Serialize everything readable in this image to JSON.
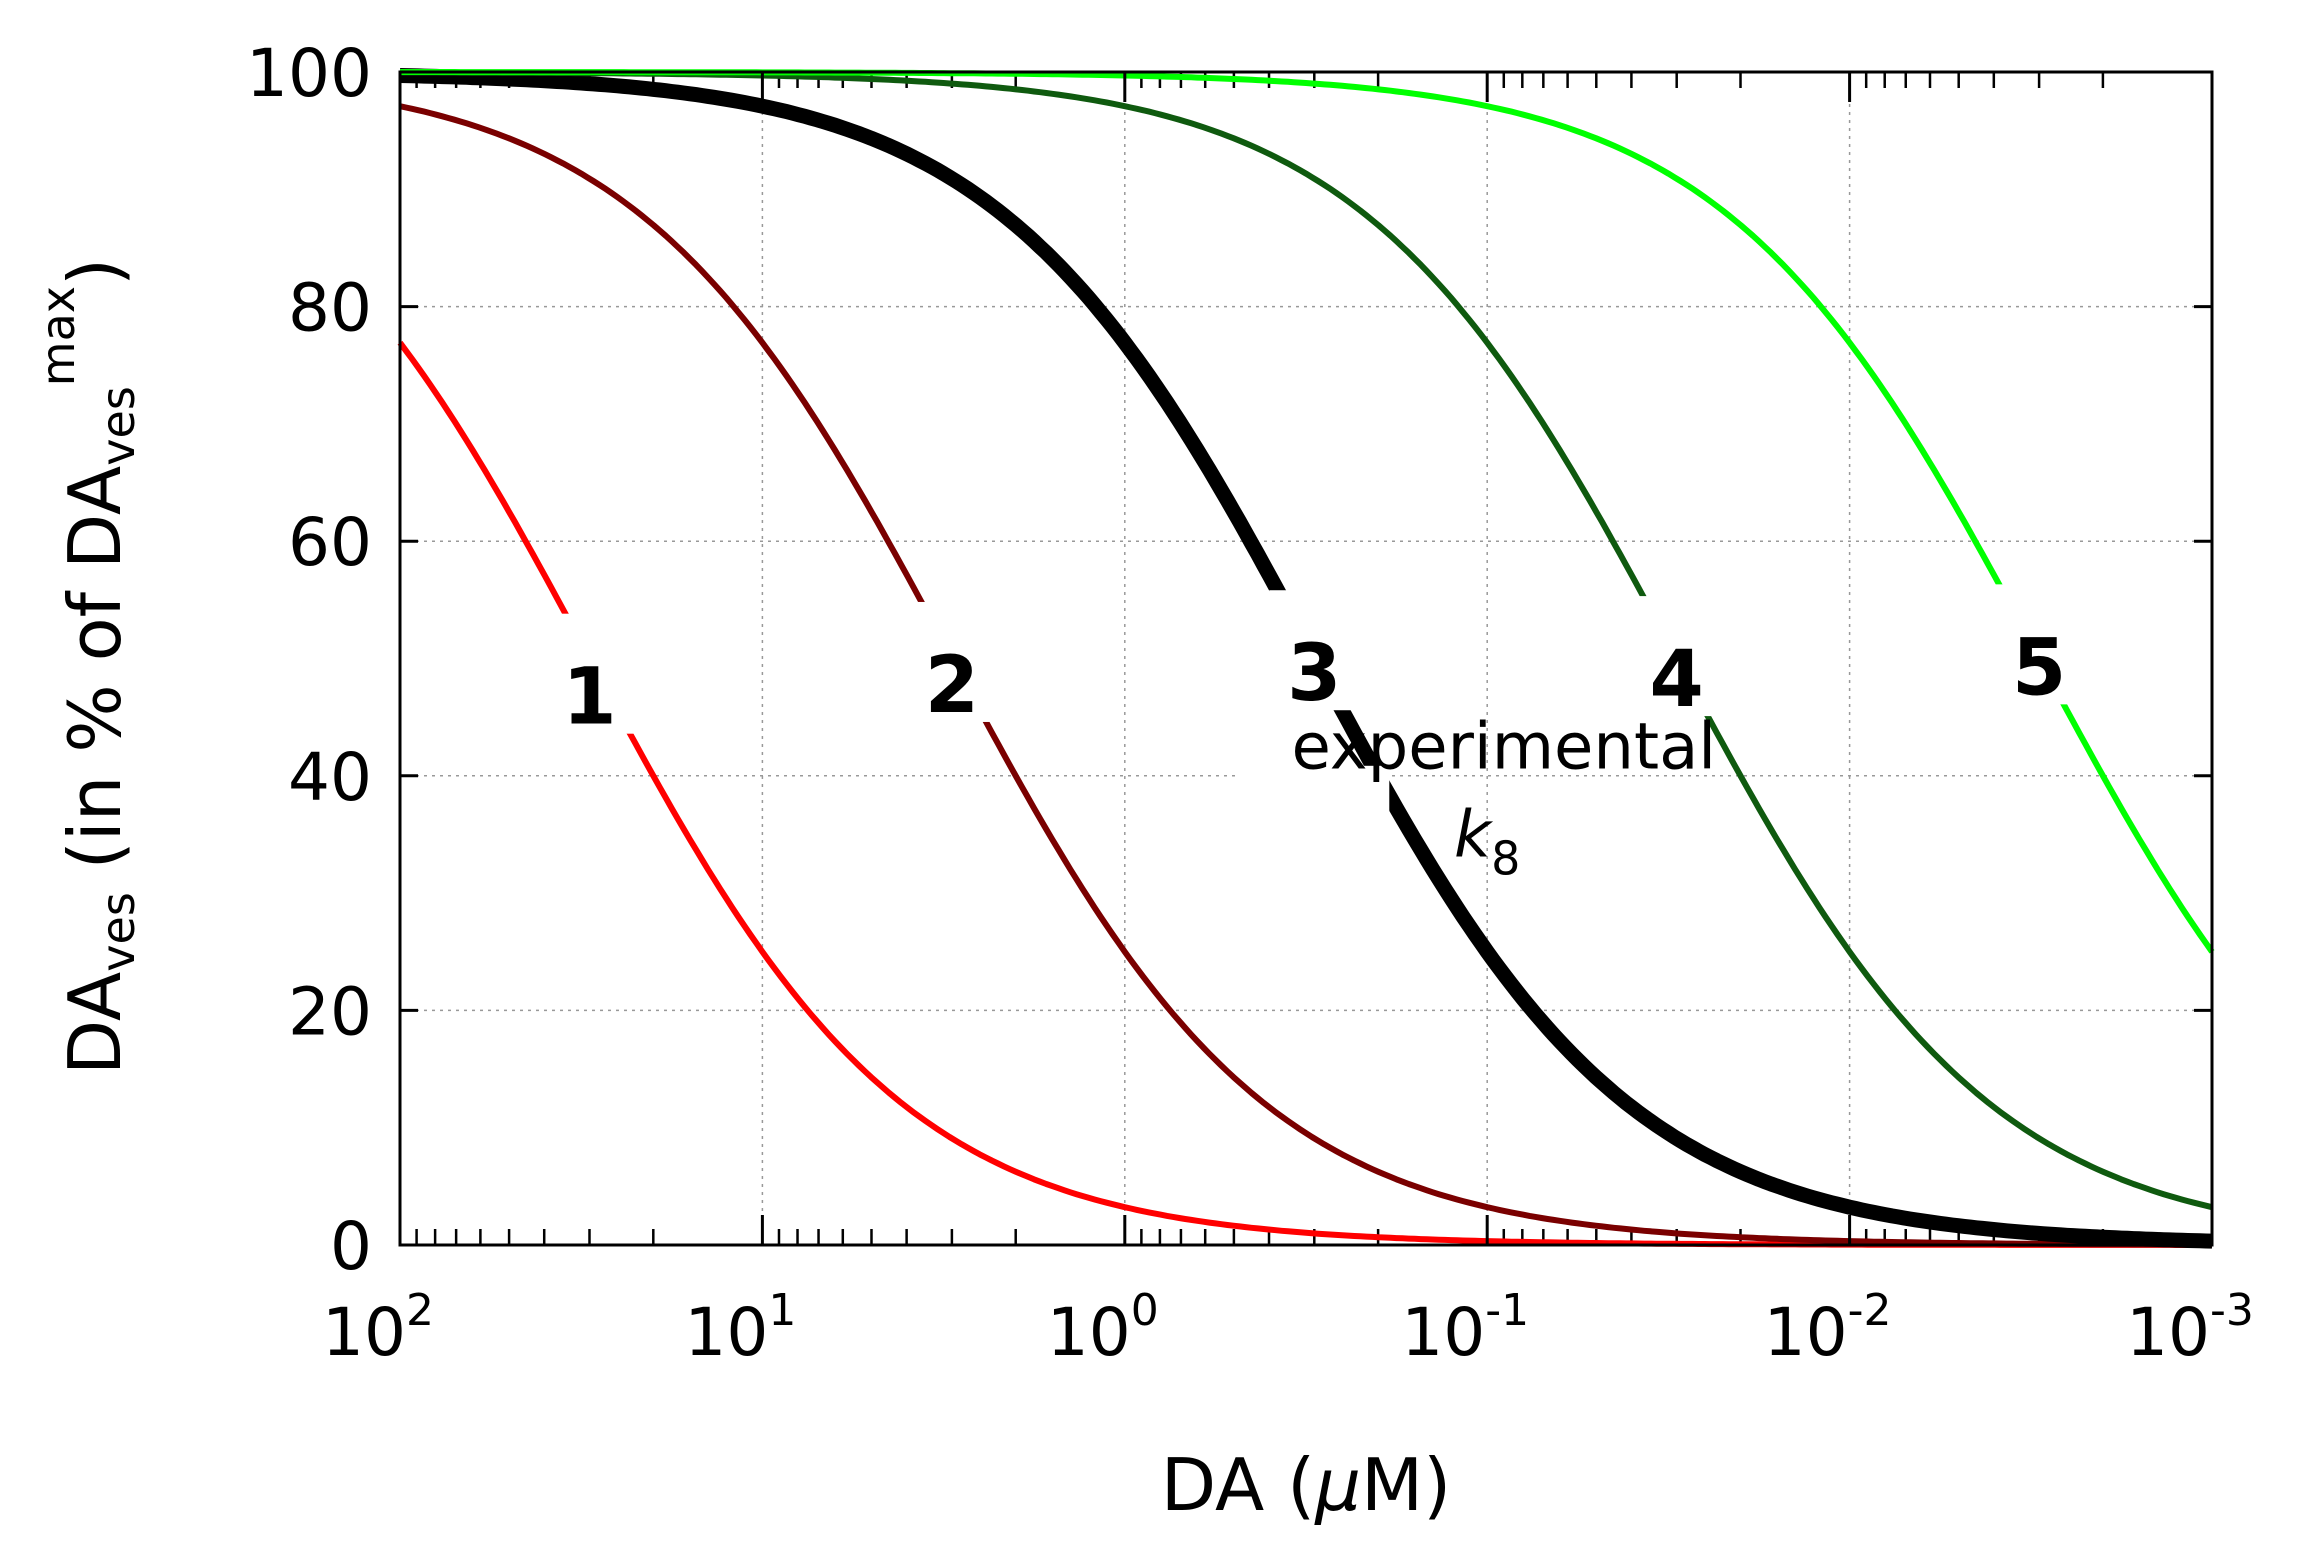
{
  "chart_data": {
    "type": "line",
    "title": "",
    "xlabel": "DA (μM)",
    "xlabel_parts": {
      "prefix": "DA (",
      "mu": "μ",
      "suffix": "M)"
    },
    "ylabel": "DAves (in % of DAves max)",
    "ylabel_parts": {
      "base": "DA",
      "sub": "ves",
      "mid": " (in % of DA",
      "sub2": "ves",
      "sup": "max",
      "end": ")"
    },
    "x_scale": "log",
    "x_reversed": true,
    "xlim": [
      100,
      0.001
    ],
    "ylim": [
      0,
      100
    ],
    "grid": true,
    "x_ticks": [
      {
        "value": 100,
        "base": "10",
        "exp": "2"
      },
      {
        "value": 10,
        "base": "10",
        "exp": "1"
      },
      {
        "value": 1,
        "base": "10",
        "exp": "0"
      },
      {
        "value": 0.1,
        "base": "10",
        "exp": "-1"
      },
      {
        "value": 0.01,
        "base": "10",
        "exp": "-2"
      },
      {
        "value": 0.001,
        "base": "10",
        "exp": "-3"
      }
    ],
    "y_ticks": [
      "0",
      "20",
      "40",
      "60",
      "80",
      "100"
    ],
    "series": [
      {
        "name": "1",
        "label": "1",
        "color": "#ff0000",
        "half_max_x": 30,
        "hill": 1,
        "label_x": 30,
        "label_y": 47
      },
      {
        "name": "2",
        "label": "2",
        "color": "#7a0000",
        "half_max_x": 3,
        "hill": 1,
        "label_x": 3,
        "label_y": 48
      },
      {
        "name": "3",
        "label": "3",
        "color": "#000000",
        "half_max_x": 0.3,
        "hill": 1,
        "label_x": 0.3,
        "label_y": 49,
        "thick": true
      },
      {
        "name": "4",
        "label": "4",
        "color": "#0f5a0f",
        "half_max_x": 0.03,
        "hill": 1,
        "label_x": 0.03,
        "label_y": 48.5
      },
      {
        "name": "5",
        "label": "5",
        "color": "#00ff00",
        "half_max_x": 0.003,
        "hill": 1,
        "label_x": 0.003,
        "label_y": 49.5
      }
    ],
    "annotations": [
      {
        "text": "experimental",
        "x": 0.09,
        "y": 42.5
      },
      {
        "text": "k",
        "sub": "8",
        "x": 0.1,
        "y": 35
      }
    ]
  }
}
